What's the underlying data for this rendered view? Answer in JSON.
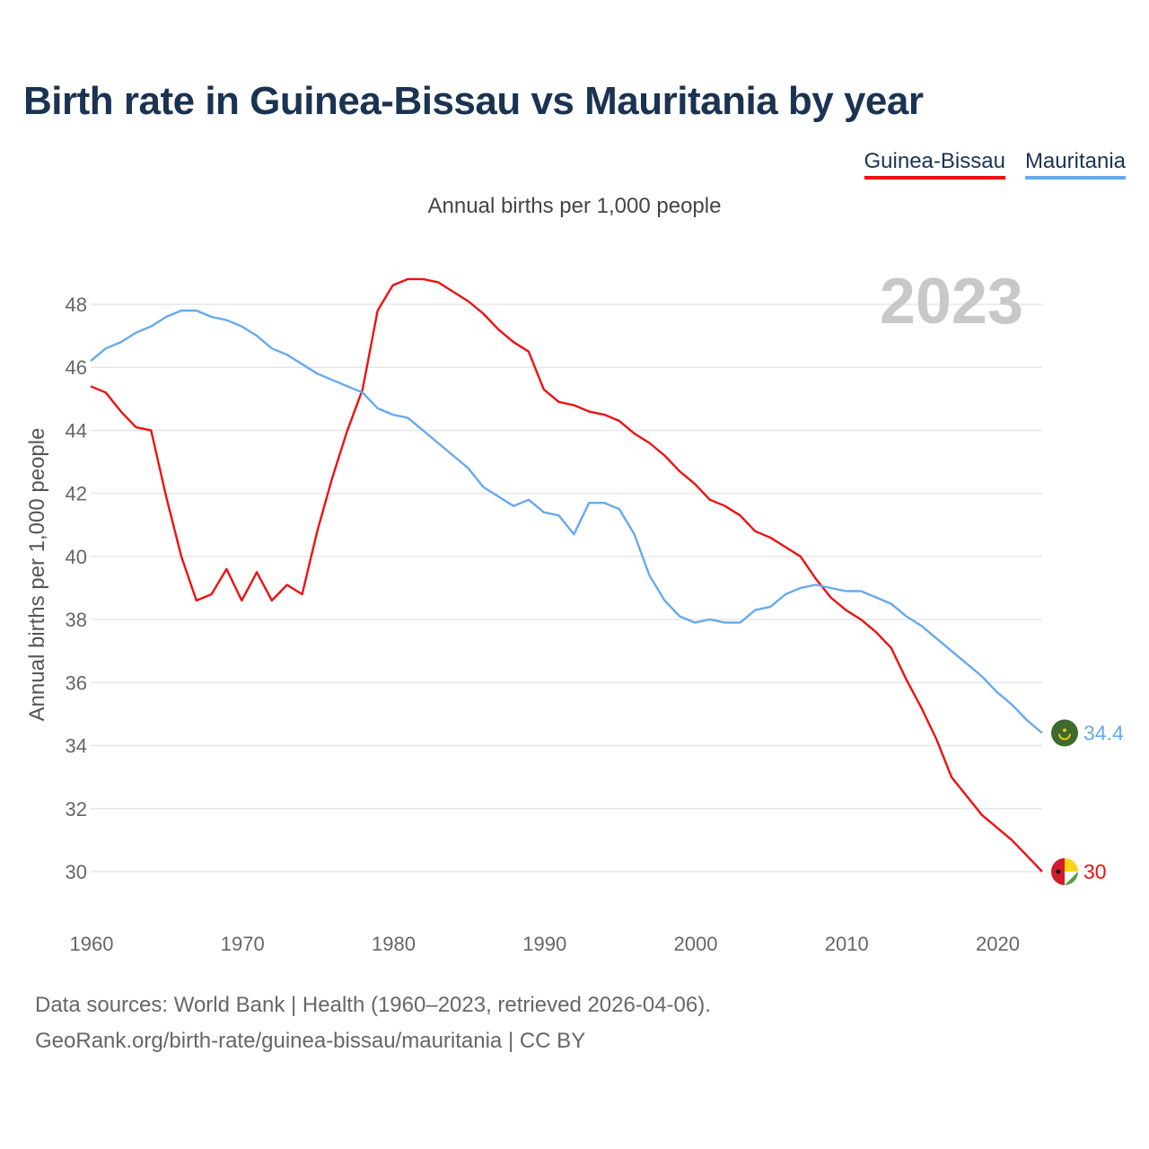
{
  "header": {
    "title": "Birth rate in Guinea-Bissau vs Mauritania by year",
    "subtitle": "Annual births per 1,000 people"
  },
  "legend": [
    {
      "name": "Guinea-Bissau",
      "color": "#ee1111"
    },
    {
      "name": "Mauritania",
      "color": "#66aaee"
    }
  ],
  "footer": {
    "line1": "Data sources: World Bank | Health (1960–2023, retrieved 2026-04-06).",
    "line2": "GeoRank.org/birth-rate/guinea-bissau/mauritania | CC BY"
  },
  "chart_data": {
    "type": "line",
    "title": "Birth rate in Guinea-Bissau vs Mauritania by year",
    "subtitle": "Annual births per 1,000 people",
    "ylabel": "Annual births per 1,000 people",
    "xlabel": "",
    "year_label": "2023",
    "xlim": [
      1960,
      2023
    ],
    "ylim": [
      29,
      50
    ],
    "xticks": [
      1960,
      1970,
      1980,
      1990,
      2000,
      2010,
      2020
    ],
    "yticks": [
      30,
      32,
      34,
      36,
      38,
      40,
      42,
      44,
      46,
      48
    ],
    "grid": true,
    "x": [
      1960,
      1961,
      1962,
      1963,
      1964,
      1965,
      1966,
      1967,
      1968,
      1969,
      1970,
      1971,
      1972,
      1973,
      1974,
      1975,
      1976,
      1977,
      1978,
      1979,
      1980,
      1981,
      1982,
      1983,
      1984,
      1985,
      1986,
      1987,
      1988,
      1989,
      1990,
      1991,
      1992,
      1993,
      1994,
      1995,
      1996,
      1997,
      1998,
      1999,
      2000,
      2001,
      2002,
      2003,
      2004,
      2005,
      2006,
      2007,
      2008,
      2009,
      2010,
      2011,
      2012,
      2013,
      2014,
      2015,
      2016,
      2017,
      2018,
      2019,
      2020,
      2021,
      2022,
      2023
    ],
    "series": [
      {
        "name": "Guinea-Bissau",
        "color": "#ee1111",
        "end_label": "30",
        "flag": "guinea-bissau-flag-icon",
        "values": [
          45.4,
          45.2,
          44.6,
          44.1,
          44.0,
          41.9,
          40.0,
          38.6,
          38.8,
          39.6,
          38.6,
          39.5,
          38.6,
          39.1,
          38.8,
          40.8,
          42.5,
          44.0,
          45.3,
          47.8,
          48.6,
          48.8,
          48.8,
          48.7,
          48.4,
          48.1,
          47.7,
          47.2,
          46.8,
          46.5,
          45.3,
          44.9,
          44.8,
          44.6,
          44.5,
          44.3,
          43.9,
          43.6,
          43.2,
          42.7,
          42.3,
          41.8,
          41.6,
          41.3,
          40.8,
          40.6,
          40.3,
          40.0,
          39.3,
          38.7,
          38.3,
          38.0,
          37.6,
          37.1,
          36.1,
          35.2,
          34.2,
          33.0,
          32.4,
          31.8,
          31.4,
          31.0,
          30.5,
          30.0
        ]
      },
      {
        "name": "Mauritania",
        "color": "#66aaee",
        "end_label": "34.4",
        "flag": "mauritania-flag-icon",
        "values": [
          46.2,
          46.6,
          46.8,
          47.1,
          47.3,
          47.6,
          47.8,
          47.8,
          47.6,
          47.5,
          47.3,
          47.0,
          46.6,
          46.4,
          46.1,
          45.8,
          45.6,
          45.4,
          45.2,
          44.7,
          44.5,
          44.4,
          44.0,
          43.6,
          43.2,
          42.8,
          42.2,
          41.9,
          41.6,
          41.8,
          41.4,
          41.3,
          40.7,
          41.7,
          41.7,
          41.5,
          40.7,
          39.4,
          38.6,
          38.1,
          37.9,
          38.0,
          37.9,
          37.9,
          38.3,
          38.4,
          38.8,
          39.0,
          39.1,
          39.0,
          38.9,
          38.9,
          38.7,
          38.5,
          38.1,
          37.8,
          37.4,
          37.0,
          36.6,
          36.2,
          35.7,
          35.3,
          34.8,
          34.4
        ]
      }
    ]
  }
}
